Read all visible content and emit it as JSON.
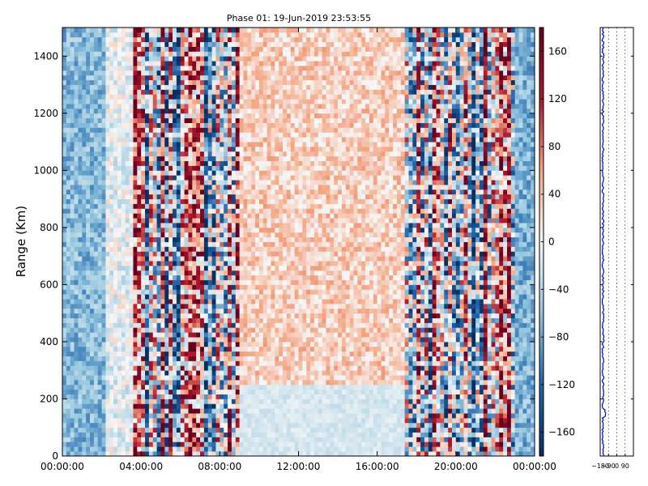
{
  "chart_data": [
    {
      "type": "heatmap",
      "title": "Phase 01: 19-Jun-2019 23:53:55",
      "xlabel": "",
      "ylabel": "Range (Km)",
      "x_tick_labels": [
        "00:00:00",
        "04:00:00",
        "08:00:00",
        "12:00:00",
        "16:00:00",
        "20:00:00",
        "00:00:00"
      ],
      "x_tick_values_hours": [
        0,
        4,
        8,
        12,
        16,
        20,
        24
      ],
      "xlim_hours": [
        0,
        24
      ],
      "y_tick_labels": [
        "0",
        "200",
        "400",
        "600",
        "800",
        "1000",
        "1200",
        "1400"
      ],
      "y_tick_values": [
        0,
        200,
        400,
        600,
        800,
        1000,
        1200,
        1400
      ],
      "ylim": [
        0,
        1500
      ],
      "colormap": "RdBu_r",
      "color_range": [
        -180,
        180
      ],
      "colorbar_tick_labels": [
        "160",
        "120",
        "80",
        "40",
        "0",
        "−40",
        "−80",
        "−120",
        "−160"
      ],
      "colorbar_tick_values": [
        160,
        120,
        80,
        40,
        0,
        -40,
        -80,
        -120,
        -160
      ],
      "band_profile_hours": [
        {
          "from": 0.0,
          "to": 2.2,
          "level": -65
        },
        {
          "from": 2.2,
          "to": 3.6,
          "level": -10
        },
        {
          "from": 3.6,
          "to": 9.0,
          "level": 0,
          "noisy": true
        },
        {
          "from": 9.0,
          "to": 17.4,
          "level": 30
        },
        {
          "from": 17.4,
          "to": 23.0,
          "level": 0,
          "noisy": true
        },
        {
          "from": 23.0,
          "to": 24.0,
          "level": -70
        }
      ],
      "low_layer": {
        "from_hours": 9.0,
        "to_hours": 17.4,
        "range_top": 250,
        "level": -20
      }
    },
    {
      "type": "line",
      "xlim": [
        -180,
        180
      ],
      "x_tick_labels": [
        "−180",
        "−90",
        "0",
        "90"
      ],
      "x_tick_values": [
        -180,
        -90,
        0,
        90
      ],
      "ylim": [
        0,
        1500
      ],
      "series_color": "#0000cc",
      "mean_value": -150,
      "spread": 10
    }
  ]
}
